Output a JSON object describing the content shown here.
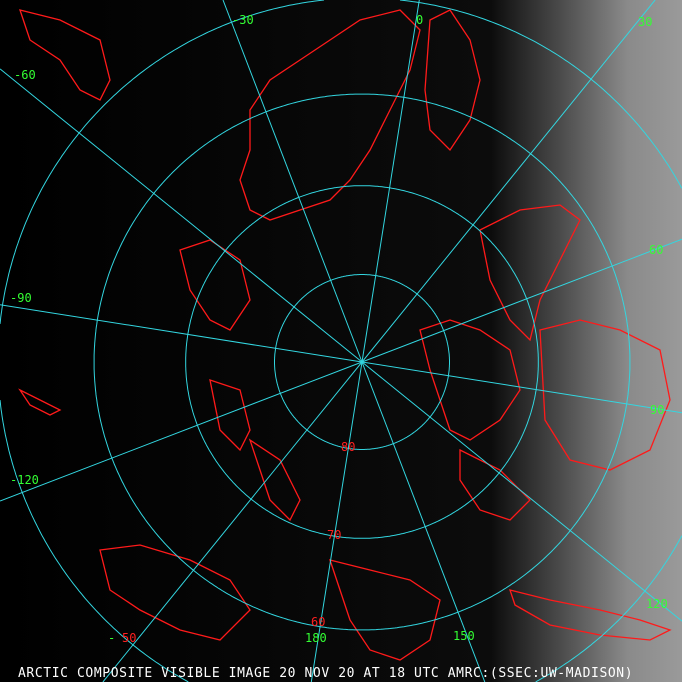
{
  "caption": "ARCTIC COMPOSITE VISIBLE IMAGE 20 NOV 20 AT 18 UTC AMRC:(SSEC:UW-MADISON)",
  "colors": {
    "grid": "#33d6e0",
    "coast": "#ff1a1a",
    "lon_label": "#33ff33",
    "lat_label": "#ff2020",
    "background": "#000000"
  },
  "projection": "polar stereographic, north pole centered",
  "longitudes": [
    0,
    30,
    60,
    90,
    120,
    150,
    180,
    -150,
    -120,
    -90,
    -60,
    -30
  ],
  "latitudes": [
    80,
    70,
    60,
    50
  ],
  "lon_labels": [
    {
      "text": "-30",
      "lon": -30
    },
    {
      "text": "0",
      "lon": 0
    },
    {
      "text": "30",
      "lon": 30
    },
    {
      "text": "-60",
      "lon": -60
    },
    {
      "text": "60",
      "lon": 60
    },
    {
      "text": "-90",
      "lon": -90
    },
    {
      "text": "90",
      "lon": 90
    },
    {
      "text": "-120",
      "lon": -120
    },
    {
      "text": "120",
      "lon": 120
    },
    {
      "text": "180",
      "lon": 180
    },
    {
      "text": "150",
      "lon": 150
    },
    {
      "text": "-",
      "lon": -150
    }
  ],
  "lat_labels": [
    {
      "text": "80"
    },
    {
      "text": "70"
    },
    {
      "text": "60"
    },
    {
      "text": "50"
    }
  ]
}
